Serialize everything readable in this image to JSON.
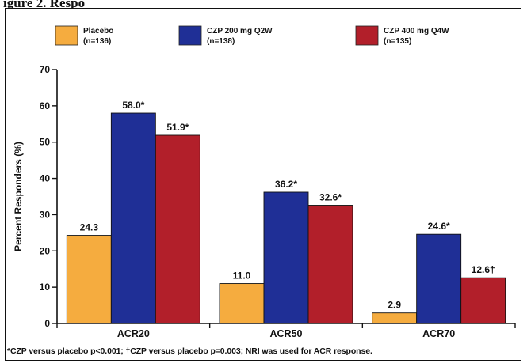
{
  "caption": "igure 2. Respo",
  "footnote": "*CZP versus placebo p<0.001; †CZP versus placebo p=0.003; NRI was used for ACR response.",
  "colors": {
    "placebo": "#F5AC3F",
    "czp200": "#1F2F96",
    "czp400": "#B21F2A",
    "text": "#111111"
  },
  "chart_data": {
    "type": "bar",
    "title": "",
    "xlabel": "",
    "ylabel": "Percent Responders (%)",
    "ylim": [
      0,
      70
    ],
    "yticks": [
      0,
      10,
      20,
      30,
      40,
      50,
      60,
      70
    ],
    "grid": false,
    "legend_position": "top",
    "categories": [
      "ACR20",
      "ACR50",
      "ACR70"
    ],
    "series": [
      {
        "name": "Placebo",
        "sub": "(n=136)",
        "color": "#F5AC3F",
        "values": [
          24.3,
          11.0,
          2.9
        ],
        "labels": [
          "24.3",
          "11.0",
          "2.9"
        ]
      },
      {
        "name": "CZP 200 mg Q2W",
        "sub": "(n=138)",
        "color": "#1F2F96",
        "values": [
          58.0,
          36.2,
          24.6
        ],
        "labels": [
          "58.0*",
          "36.2*",
          "24.6*"
        ]
      },
      {
        "name": "CZP 400 mg Q4W",
        "sub": "(n=135)",
        "color": "#B21F2A",
        "values": [
          51.9,
          32.6,
          12.6
        ],
        "labels": [
          "51.9*",
          "32.6*",
          "12.6†"
        ]
      }
    ]
  }
}
